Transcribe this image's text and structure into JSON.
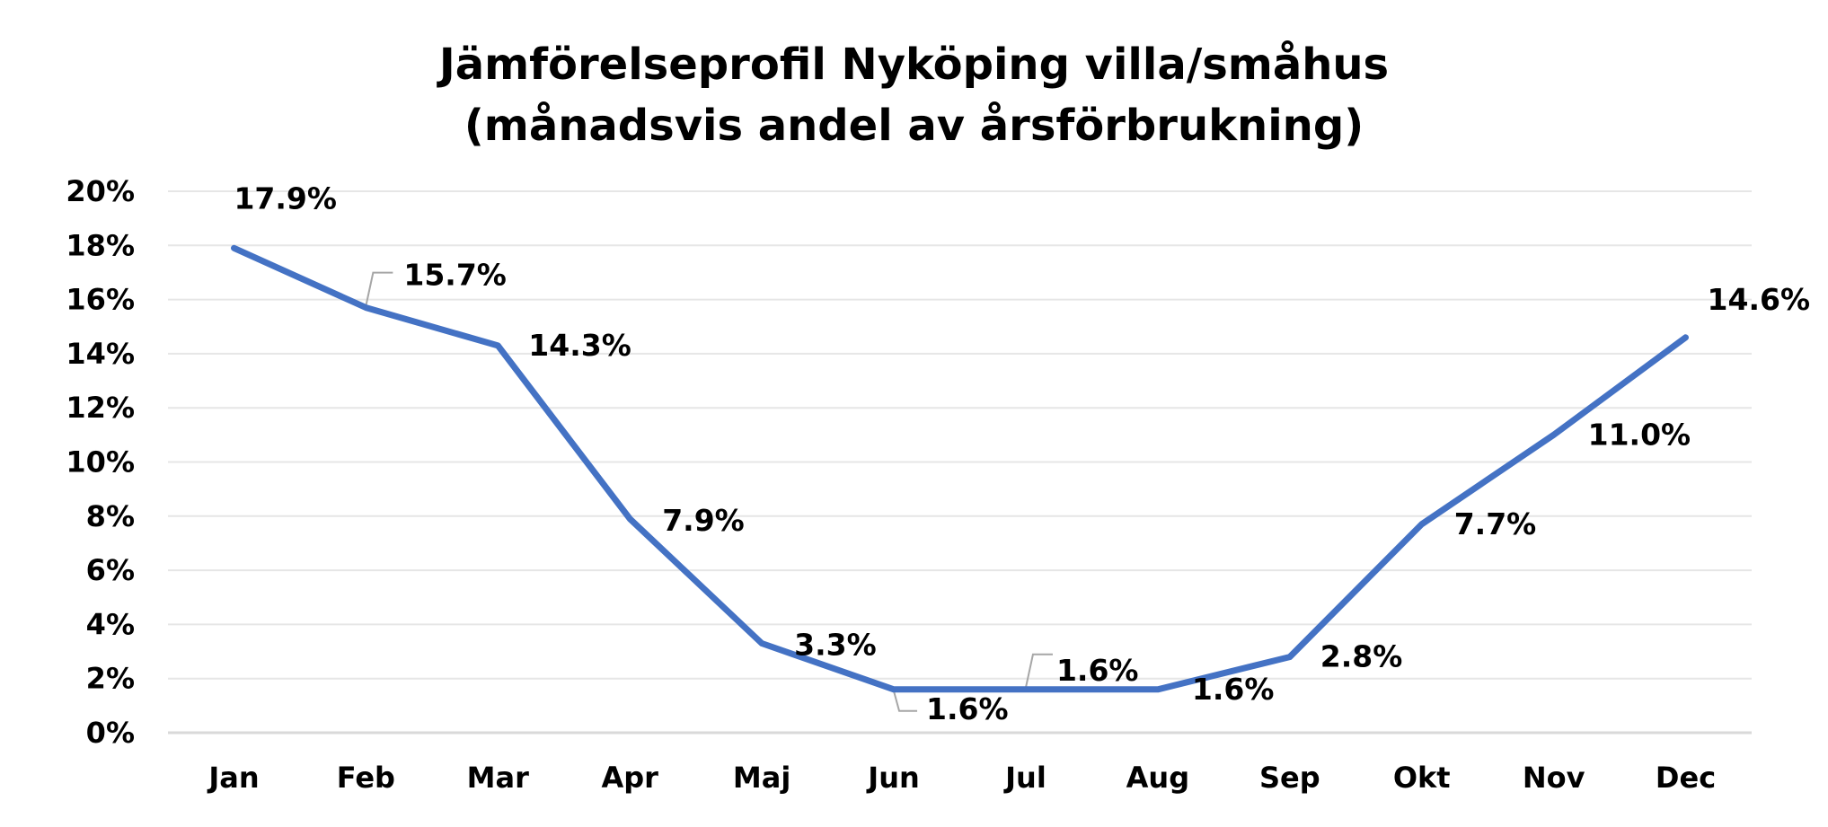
{
  "chart_data": {
    "type": "line",
    "title": [
      "Jämförelseprofil Nyköping villa/småhus",
      "(månadsvis andel av årsförbrukning)"
    ],
    "categories": [
      "Jan",
      "Feb",
      "Mar",
      "Apr",
      "Maj",
      "Jun",
      "Jul",
      "Aug",
      "Sep",
      "Okt",
      "Nov",
      "Dec"
    ],
    "series": [
      {
        "values": [
          17.9,
          15.7,
          14.3,
          7.9,
          3.3,
          1.6,
          1.6,
          1.6,
          2.8,
          7.7,
          11.0,
          14.6
        ],
        "labels": [
          "17.9%",
          "15.7%",
          "14.3%",
          "7.9%",
          "3.3%",
          "1.6%",
          "1.6%",
          "1.6%",
          "2.8%",
          "7.7%",
          "11.0%",
          "14.6%"
        ],
        "color": "#4472C4"
      }
    ],
    "ylim": [
      0,
      20
    ],
    "yticks": [
      "0%",
      "2%",
      "4%",
      "6%",
      "8%",
      "10%",
      "12%",
      "14%",
      "16%",
      "18%",
      "20%"
    ],
    "grid": true,
    "legend": "none",
    "leader_line_color": "#A6A6A6",
    "gridline_color": "#E6E6E6",
    "axis_line_color": "#D9D9D9"
  }
}
